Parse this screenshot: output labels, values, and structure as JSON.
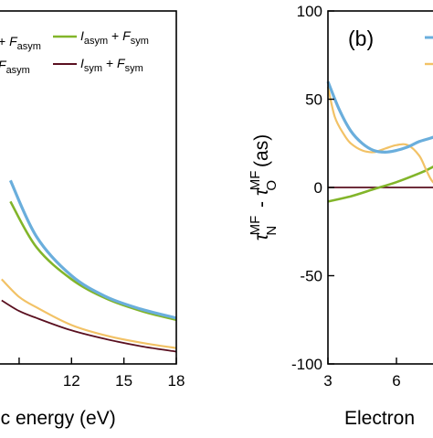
{
  "chart_data": [
    {
      "type": "line",
      "panel_label": "",
      "xlabel": "ic energy (eV)",
      "ylabel": "",
      "x_ticks": [
        12,
        15,
        18
      ],
      "y_ticks": [],
      "xlim": [
        7.8,
        18
      ],
      "legend": {
        "placement": "top",
        "entries": [
          {
            "key": "aa",
            "label": "F",
            "sub": "asym",
            "prefix": "+ "
          },
          {
            "key": "as",
            "label": "I",
            "sub": "asym",
            "label2": "F",
            "sub2": "sym"
          },
          {
            "key": "sa",
            "label": "F",
            "sub": "asym",
            "prefix": ""
          },
          {
            "key": "ss",
            "label": "I",
            "sub": "sym",
            "label2": "F",
            "sub2": "sym"
          }
        ]
      },
      "series": [
        {
          "key": "blue",
          "color": "#6aaedc",
          "x": [
            8.5,
            10,
            12,
            14,
            16,
            18
          ],
          "y": [
            0.52,
            0.36,
            0.25,
            0.19,
            0.155,
            0.13
          ]
        },
        {
          "key": "green",
          "color": "#82b52a",
          "x": [
            8.5,
            10,
            12,
            14,
            16,
            18
          ],
          "y": [
            0.46,
            0.33,
            0.24,
            0.185,
            0.15,
            0.125
          ]
        },
        {
          "key": "orange",
          "color": "#f2c266",
          "x": [
            8.0,
            9,
            10,
            12,
            14,
            16,
            18
          ],
          "y": [
            0.24,
            0.19,
            0.16,
            0.11,
            0.08,
            0.06,
            0.045
          ]
        },
        {
          "key": "maroon",
          "color": "#5a1020",
          "x": [
            8.0,
            9,
            10,
            12,
            14,
            16,
            18
          ],
          "y": [
            0.18,
            0.15,
            0.13,
            0.095,
            0.07,
            0.05,
            0.035
          ]
        }
      ]
    },
    {
      "type": "line",
      "panel_label": "(b)",
      "xlabel": "Electron",
      "ylabel_parts": {
        "tau": "τ",
        "sup1": "MF",
        "sub1": "N",
        "dash": " - ",
        "sup2": "MF",
        "sub2": "O",
        "unit": "(as)"
      },
      "x_ticks": [
        3,
        6
      ],
      "y_ticks": [
        100,
        50,
        0,
        -50,
        -100
      ],
      "ylim": [
        -100,
        100
      ],
      "xlim": [
        3,
        8.2
      ],
      "series": [
        {
          "key": "blue",
          "color": "#6aaedc",
          "x": [
            3.0,
            3.5,
            4.0,
            4.5,
            5.0,
            5.5,
            6.0,
            6.5,
            7.0,
            7.5,
            8.2
          ],
          "y": [
            60,
            44,
            32,
            25,
            21,
            20,
            21,
            23,
            26,
            28,
            31
          ]
        },
        {
          "key": "orange",
          "color": "#f2c266",
          "x": [
            3.0,
            3.3,
            3.7,
            4.0,
            4.5,
            5.0,
            5.5,
            6.0,
            6.5,
            7.0,
            7.3,
            7.6,
            8.2
          ],
          "y": [
            57,
            40,
            30,
            25,
            21,
            20,
            22,
            24,
            24,
            18,
            10,
            3,
            -3
          ]
        },
        {
          "key": "green",
          "color": "#82b52a",
          "x": [
            3.0,
            4.0,
            5.0,
            6.0,
            7.0,
            7.5,
            8.2
          ],
          "y": [
            -8,
            -5,
            -1,
            3,
            8,
            11,
            16
          ]
        },
        {
          "key": "maroon",
          "color": "#5a1020",
          "x": [
            3.0,
            8.2
          ],
          "y": [
            0,
            0
          ]
        }
      ],
      "legend": {
        "placement": "top-right",
        "entries": [
          {
            "color": "#6aaedc"
          },
          {
            "color": "#f2c266"
          }
        ]
      }
    }
  ]
}
